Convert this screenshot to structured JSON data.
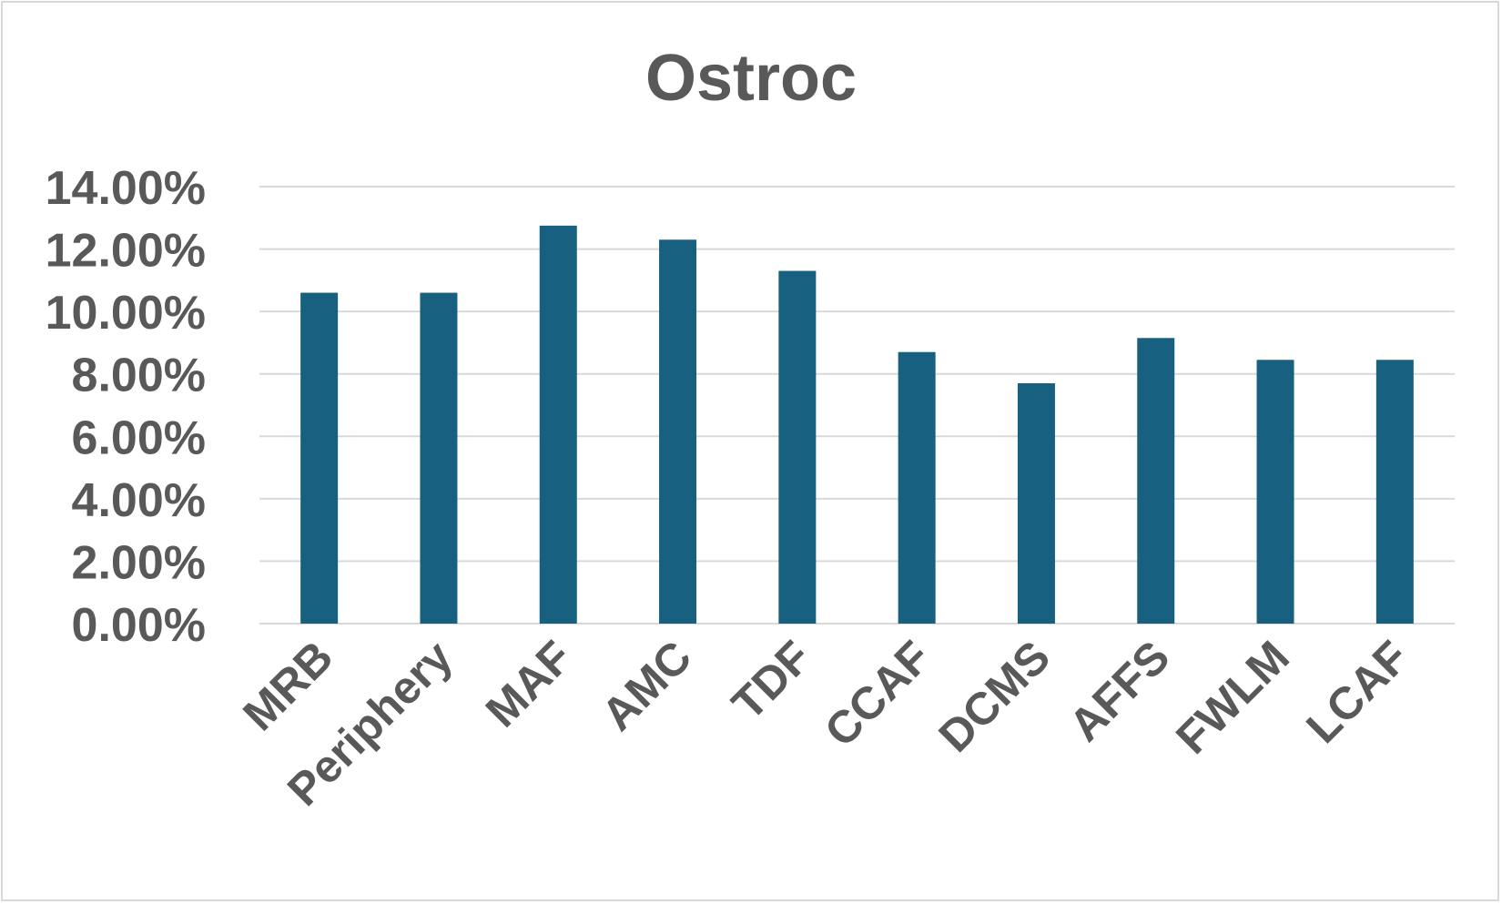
{
  "chart_data": {
    "type": "bar",
    "title": "Ostroc",
    "xlabel": "",
    "ylabel": "",
    "categories": [
      "MRB",
      "Periphery",
      "MAF",
      "AMC",
      "TDF",
      "CCAF",
      "DCMS",
      "AFFS",
      "FWLM",
      "LCAF"
    ],
    "series": [
      {
        "values": [
          10.6,
          10.6,
          12.75,
          12.3,
          11.3,
          8.7,
          7.7,
          9.15,
          8.45,
          8.45
        ]
      }
    ],
    "ylim": [
      0,
      14
    ],
    "yticks": [
      0,
      2,
      4,
      6,
      8,
      10,
      12,
      14
    ],
    "ytick_labels": [
      "0.00%",
      "2.00%",
      "4.00%",
      "6.00%",
      "8.00%",
      "10.00%",
      "12.00%",
      "14.00%"
    ],
    "grid": true,
    "legend": "none",
    "colors": {
      "bar": "#17607f",
      "grid": "#d9d9d9",
      "text": "#595959",
      "border": "#d9d9d9"
    }
  }
}
